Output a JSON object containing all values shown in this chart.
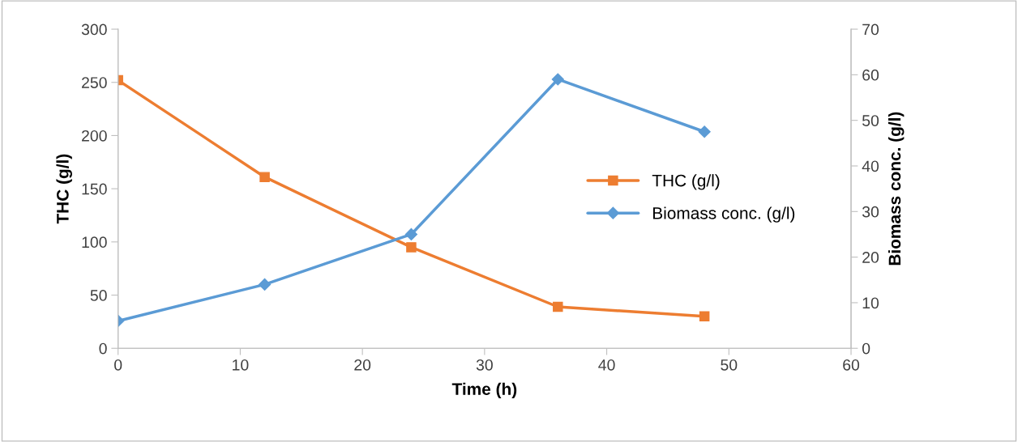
{
  "chart_data": {
    "type": "line",
    "xlabel": "Time (h)",
    "ylabel": "THC (g/l)",
    "y2label": "Biomass conc. (g/l)",
    "x": [
      0,
      12,
      24,
      36,
      48
    ],
    "series": [
      {
        "name": "THC (g/l)",
        "color": "#ed7d31",
        "values": [
          252,
          161,
          95,
          39,
          30
        ],
        "marker": "square"
      },
      {
        "name": "Biomass conc. (g/l)",
        "color": "#5b9bd5",
        "values": [
          6,
          14,
          25,
          59,
          47.5
        ],
        "marker": "diamond",
        "axis": "y2"
      }
    ],
    "xlim": [
      0,
      60
    ],
    "xticks": [
      0,
      10,
      20,
      30,
      40,
      50,
      60
    ],
    "ylim": [
      0,
      300
    ],
    "yticks": [
      0,
      50,
      100,
      150,
      200,
      250,
      300
    ],
    "y2lim": [
      0,
      70
    ],
    "y2ticks": [
      0,
      10,
      20,
      30,
      40,
      50,
      60,
      70
    ],
    "grid": false,
    "legend": "right",
    "line_style": "solid"
  }
}
